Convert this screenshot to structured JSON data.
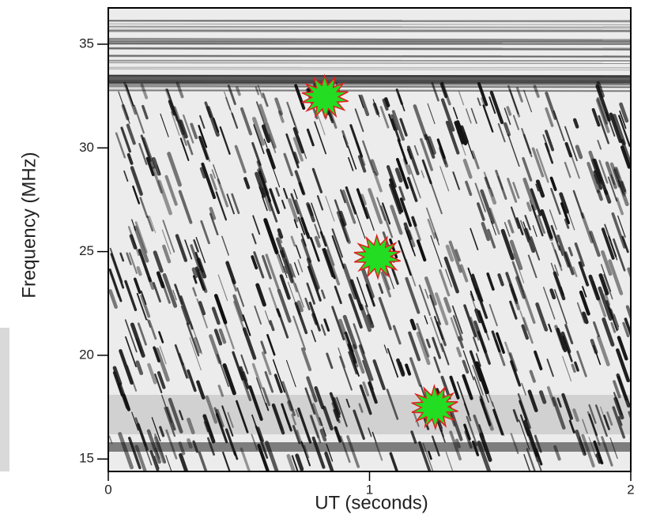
{
  "chart_data": {
    "type": "scatter",
    "xlabel": "UT (seconds)",
    "ylabel": "Frequency (MHz)",
    "x": [
      0.83,
      1.03,
      1.25
    ],
    "values": [
      32.45,
      24.75,
      17.5
    ],
    "color": "#22dd22",
    "edge_color": "#e02020",
    "xlim": [
      0,
      2
    ],
    "ylim": [
      14.4,
      36.75
    ],
    "xticks": [
      0,
      1,
      2
    ],
    "yticks": [
      15,
      20,
      25,
      30,
      35
    ]
  }
}
